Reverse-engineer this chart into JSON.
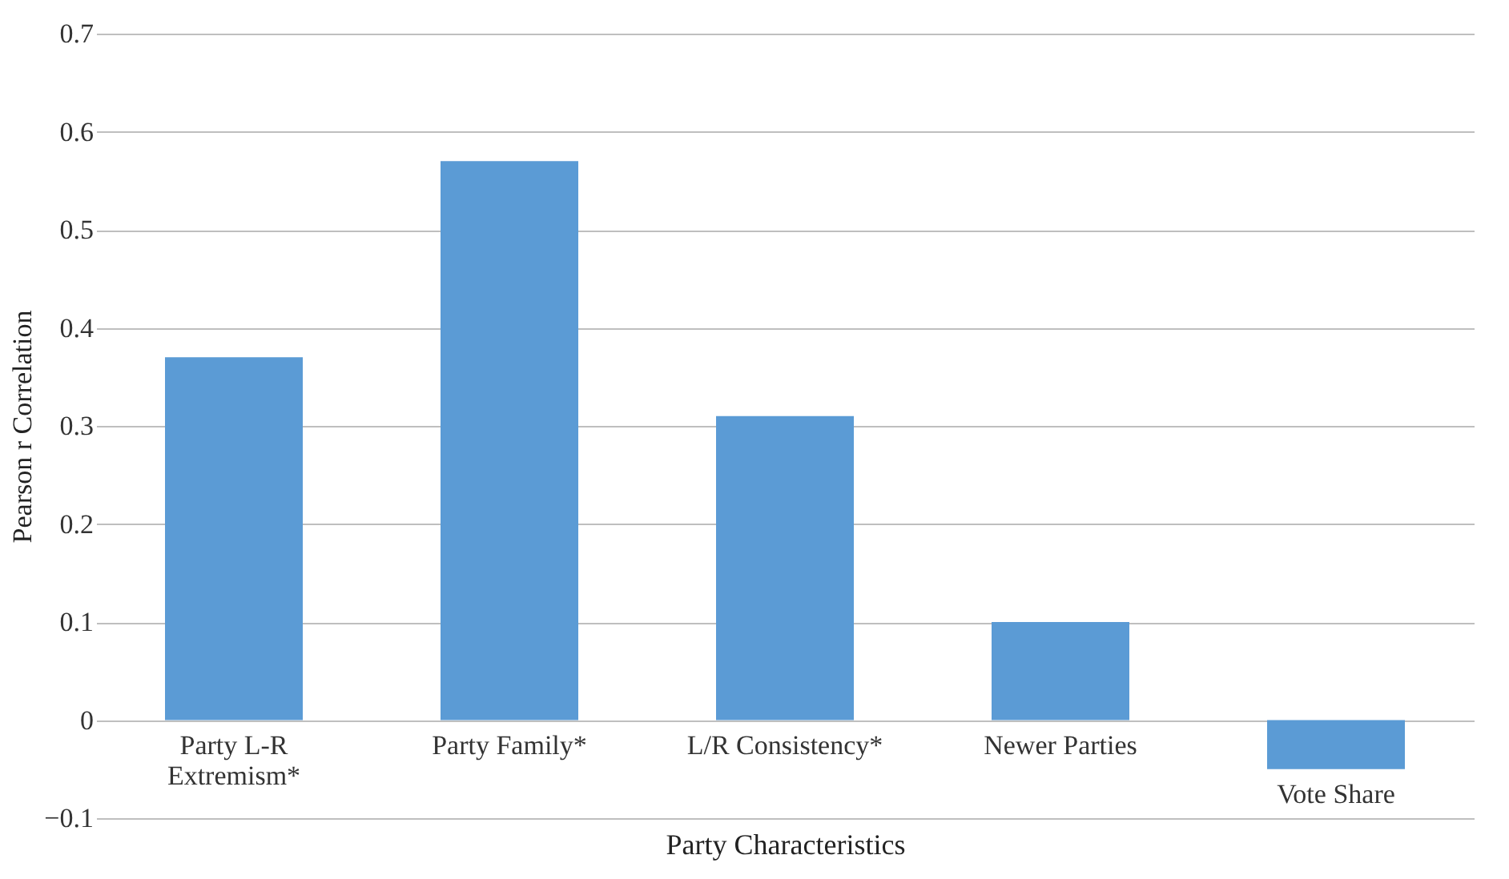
{
  "chart_data": {
    "type": "bar",
    "xlabel": "Party Characteristics",
    "ylabel": "Pearson r Correlation",
    "categories": [
      "Party L-R\nExtremism*",
      "Party Family*",
      "L/R Consistency*",
      "Newer Parties",
      "Vote Share"
    ],
    "values": [
      0.37,
      0.57,
      0.31,
      0.1,
      -0.05
    ],
    "color": "#5b9bd5",
    "ylim": [
      -0.1,
      0.7
    ],
    "yticks": [
      {
        "value": -0.1,
        "label": "−0.1"
      },
      0,
      0.1,
      0.2,
      0.3,
      0.4,
      0.5,
      0.6,
      0.7
    ],
    "grid": "y"
  }
}
